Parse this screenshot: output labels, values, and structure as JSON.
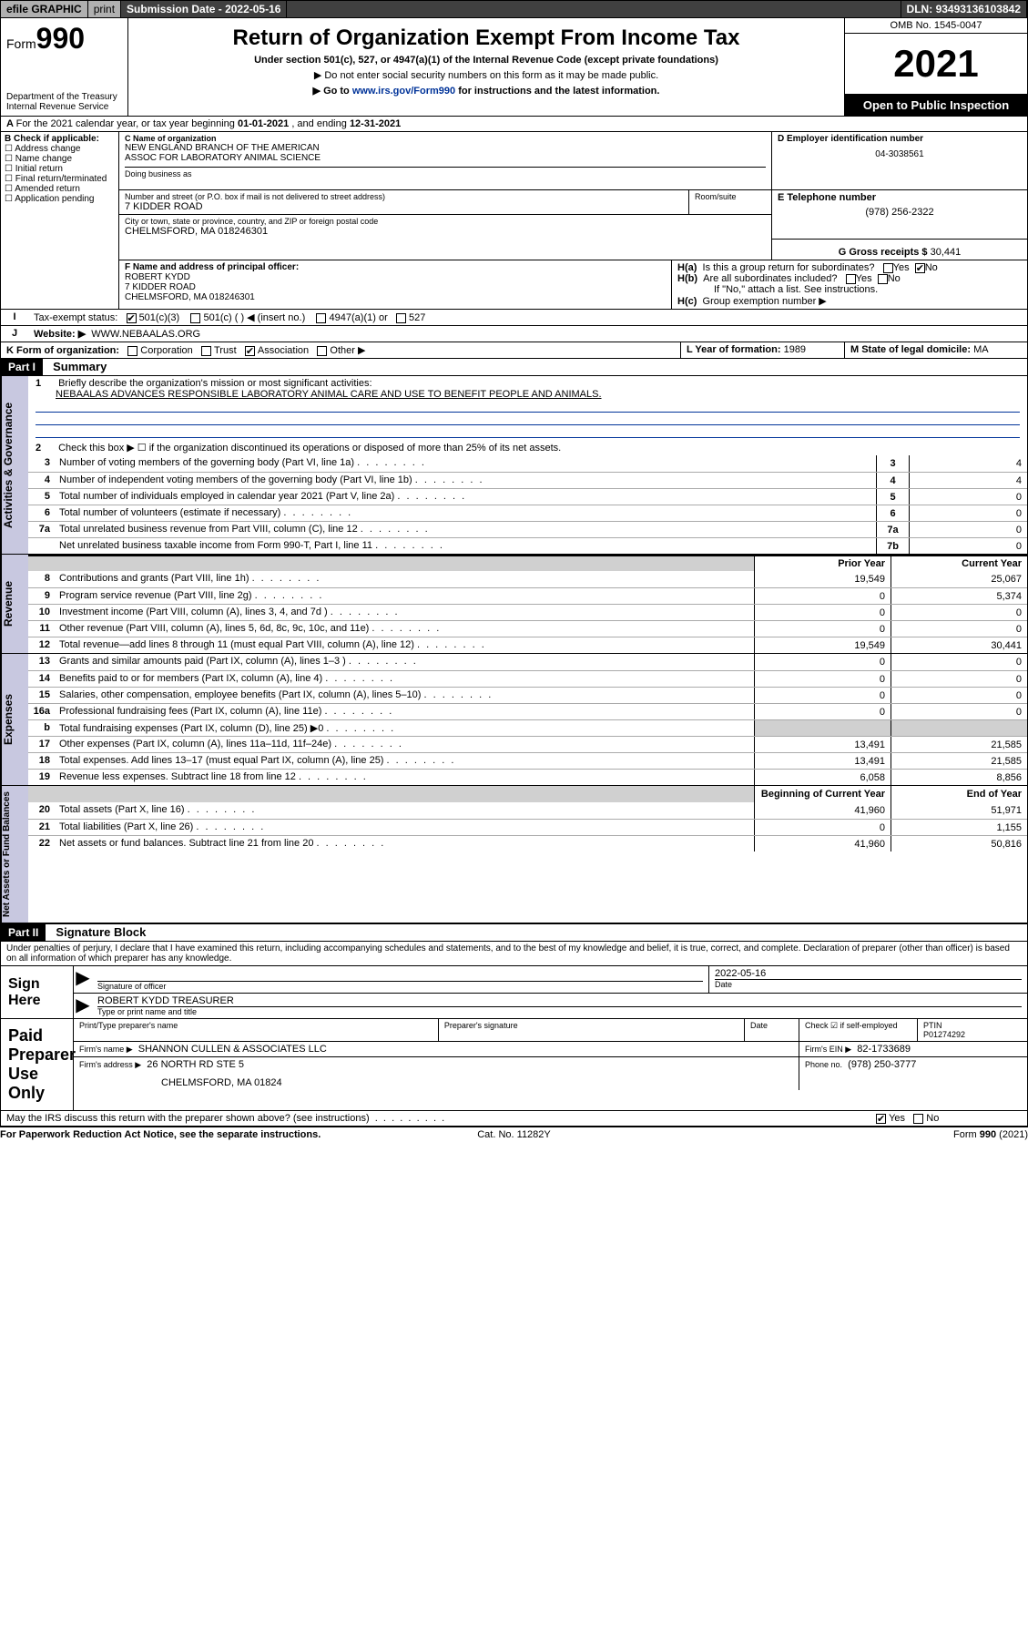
{
  "topbar": {
    "efile": "efile GRAPHIC",
    "print": "print",
    "submission_label": "Submission Date",
    "submission_date": "2022-05-16",
    "dln_label": "DLN:",
    "dln": "93493136103842"
  },
  "header": {
    "form_prefix": "Form",
    "form_number": "990",
    "dept": "Department of the Treasury",
    "irs": "Internal Revenue Service",
    "title": "Return of Organization Exempt From Income Tax",
    "sub": "Under section 501(c), 527, or 4947(a)(1) of the Internal Revenue Code (except private foundations)",
    "note1": "▶ Do not enter social security numbers on this form as it may be made public.",
    "note2_pre": "▶ Go to ",
    "note2_link": "www.irs.gov/Form990",
    "note2_post": " for instructions and the latest information.",
    "omb": "OMB No. 1545-0047",
    "year": "2021",
    "inspect": "Open to Public Inspection"
  },
  "sectionA": {
    "text_pre": "For the 2021 calendar year, or tax year beginning ",
    "begin": "01-01-2021",
    "mid": " , and ending ",
    "end": "12-31-2021"
  },
  "sectionB": {
    "label": "B Check if applicable:",
    "opts": [
      "Address change",
      "Name change",
      "Initial return",
      "Final return/terminated",
      "Amended return",
      "Application pending"
    ]
  },
  "sectionC": {
    "name_label": "C Name of organization",
    "name1": "NEW ENGLAND BRANCH OF THE AMERICAN",
    "name2": "ASSOC FOR LABORATORY ANIMAL SCIENCE",
    "dba_label": "Doing business as",
    "street_label": "Number and street (or P.O. box if mail is not delivered to street address)",
    "room_label": "Room/suite",
    "street": "7 KIDDER ROAD",
    "city_label": "City or town, state or province, country, and ZIP or foreign postal code",
    "city": "CHELMSFORD, MA  018246301"
  },
  "sectionD": {
    "label": "D Employer identification number",
    "value": "04-3038561"
  },
  "sectionE": {
    "label": "E Telephone number",
    "value": "(978) 256-2322"
  },
  "sectionF": {
    "label": "F Name and address of principal officer:",
    "name": "ROBERT KYDD",
    "street": "7 KIDDER ROAD",
    "city": "CHELMSFORD, MA  018246301"
  },
  "sectionG": {
    "label": "G Gross receipts $",
    "value": "30,441"
  },
  "sectionH": {
    "a": "Is this a group return for subordinates?",
    "b": "Are all subordinates included?",
    "b_note": "If \"No,\" attach a list. See instructions.",
    "c": "Group exemption number ▶",
    "ha_no": true
  },
  "sectionI": {
    "label": "Tax-exempt status:",
    "c3": "501(c)(3)",
    "c": "501(c) (  ) ◀ (insert no.)",
    "a1": "4947(a)(1) or",
    "s527": "527"
  },
  "sectionJ": {
    "label": "Website: ▶",
    "value": "WWW.NEBAALAS.ORG"
  },
  "sectionK": {
    "label": "K Form of organization:",
    "corp": "Corporation",
    "trust": "Trust",
    "assoc": "Association",
    "other": "Other ▶"
  },
  "sectionL": {
    "label": "L Year of formation:",
    "value": "1989"
  },
  "sectionM": {
    "label": "M State of legal domicile:",
    "value": "MA"
  },
  "part1": {
    "label": "Part I",
    "title": "Summary",
    "l1_label": "Briefly describe the organization's mission or most significant activities:",
    "l1_text": "NEBAALAS ADVANCES RESPONSIBLE LABORATORY ANIMAL CARE AND USE TO BENEFIT PEOPLE AND ANIMALS.",
    "l2": "Check this box ▶ ☐  if the organization discontinued its operations or disposed of more than 25% of its net assets.",
    "vtabs": {
      "gov": "Activities & Governance",
      "rev": "Revenue",
      "exp": "Expenses",
      "net": "Net Assets or Fund Balances"
    },
    "col_prior": "Prior Year",
    "col_curr": "Current Year",
    "col_begin": "Beginning of Current Year",
    "col_end": "End of Year",
    "lines_gov": [
      {
        "n": "3",
        "t": "Number of voting members of the governing body (Part VI, line 1a)",
        "box": "3",
        "v": "4"
      },
      {
        "n": "4",
        "t": "Number of independent voting members of the governing body (Part VI, line 1b)",
        "box": "4",
        "v": "4"
      },
      {
        "n": "5",
        "t": "Total number of individuals employed in calendar year 2021 (Part V, line 2a)",
        "box": "5",
        "v": "0"
      },
      {
        "n": "6",
        "t": "Total number of volunteers (estimate if necessary)",
        "box": "6",
        "v": "0"
      },
      {
        "n": "7a",
        "t": "Total unrelated business revenue from Part VIII, column (C), line 12",
        "box": "7a",
        "v": "0"
      },
      {
        "n": "",
        "t": "Net unrelated business taxable income from Form 990-T, Part I, line 11",
        "box": "7b",
        "v": "0"
      }
    ],
    "lines_rev": [
      {
        "n": "8",
        "t": "Contributions and grants (Part VIII, line 1h)",
        "p": "19,549",
        "c": "25,067"
      },
      {
        "n": "9",
        "t": "Program service revenue (Part VIII, line 2g)",
        "p": "0",
        "c": "5,374"
      },
      {
        "n": "10",
        "t": "Investment income (Part VIII, column (A), lines 3, 4, and 7d )",
        "p": "0",
        "c": "0"
      },
      {
        "n": "11",
        "t": "Other revenue (Part VIII, column (A), lines 5, 6d, 8c, 9c, 10c, and 11e)",
        "p": "0",
        "c": "0"
      },
      {
        "n": "12",
        "t": "Total revenue—add lines 8 through 11 (must equal Part VIII, column (A), line 12)",
        "p": "19,549",
        "c": "30,441"
      }
    ],
    "lines_exp": [
      {
        "n": "13",
        "t": "Grants and similar amounts paid (Part IX, column (A), lines 1–3 )",
        "p": "0",
        "c": "0"
      },
      {
        "n": "14",
        "t": "Benefits paid to or for members (Part IX, column (A), line 4)",
        "p": "0",
        "c": "0"
      },
      {
        "n": "15",
        "t": "Salaries, other compensation, employee benefits (Part IX, column (A), lines 5–10)",
        "p": "0",
        "c": "0"
      },
      {
        "n": "16a",
        "t": "Professional fundraising fees (Part IX, column (A), line 11e)",
        "p": "0",
        "c": "0"
      },
      {
        "n": "b",
        "t": "Total fundraising expenses (Part IX, column (D), line 25) ▶0",
        "p": "",
        "c": "",
        "gray": true
      },
      {
        "n": "17",
        "t": "Other expenses (Part IX, column (A), lines 11a–11d, 11f–24e)",
        "p": "13,491",
        "c": "21,585"
      },
      {
        "n": "18",
        "t": "Total expenses. Add lines 13–17 (must equal Part IX, column (A), line 25)",
        "p": "13,491",
        "c": "21,585"
      },
      {
        "n": "19",
        "t": "Revenue less expenses. Subtract line 18 from line 12",
        "p": "6,058",
        "c": "8,856"
      }
    ],
    "lines_net": [
      {
        "n": "20",
        "t": "Total assets (Part X, line 16)",
        "p": "41,960",
        "c": "51,971"
      },
      {
        "n": "21",
        "t": "Total liabilities (Part X, line 26)",
        "p": "0",
        "c": "1,155"
      },
      {
        "n": "22",
        "t": "Net assets or fund balances. Subtract line 21 from line 20",
        "p": "41,960",
        "c": "50,816"
      }
    ]
  },
  "part2": {
    "label": "Part II",
    "title": "Signature Block",
    "decl": "Under penalties of perjury, I declare that I have examined this return, including accompanying schedules and statements, and to the best of my knowledge and belief, it is true, correct, and complete. Declaration of preparer (other than officer) is based on all information of which preparer has any knowledge.",
    "sign_here": "Sign Here",
    "sig_officer": "Signature of officer",
    "date": "Date",
    "date_val": "2022-05-16",
    "officer_name": "ROBERT KYDD  TREASURER",
    "type_name": "Type or print name and title",
    "paid_prep": "Paid Preparer Use Only",
    "prep_name": "Print/Type preparer's name",
    "prep_sig": "Preparer's signature",
    "prep_date": "Date",
    "check_self": "Check ☑ if self-employed",
    "ptin_label": "PTIN",
    "ptin": "P01274292",
    "firm_name_label": "Firm's name    ▶",
    "firm_name": "SHANNON CULLEN & ASSOCIATES LLC",
    "firm_ein_label": "Firm's EIN ▶",
    "firm_ein": "82-1733689",
    "firm_addr_label": "Firm's address ▶",
    "firm_addr1": "26 NORTH RD STE 5",
    "firm_addr2": "CHELMSFORD, MA  01824",
    "phone_label": "Phone no.",
    "phone": "(978) 250-3777",
    "discuss": "May the IRS discuss this return with the preparer shown above? (see instructions)",
    "discuss_yes": "Yes",
    "discuss_no": "No"
  },
  "footer": {
    "paperwork": "For Paperwork Reduction Act Notice, see the separate instructions.",
    "cat": "Cat. No. 11282Y",
    "form": "Form 990 (2021)"
  },
  "colors": {
    "link": "#003399",
    "vtab_bg": "#c8c8e0",
    "gray": "#d0d0d0"
  }
}
